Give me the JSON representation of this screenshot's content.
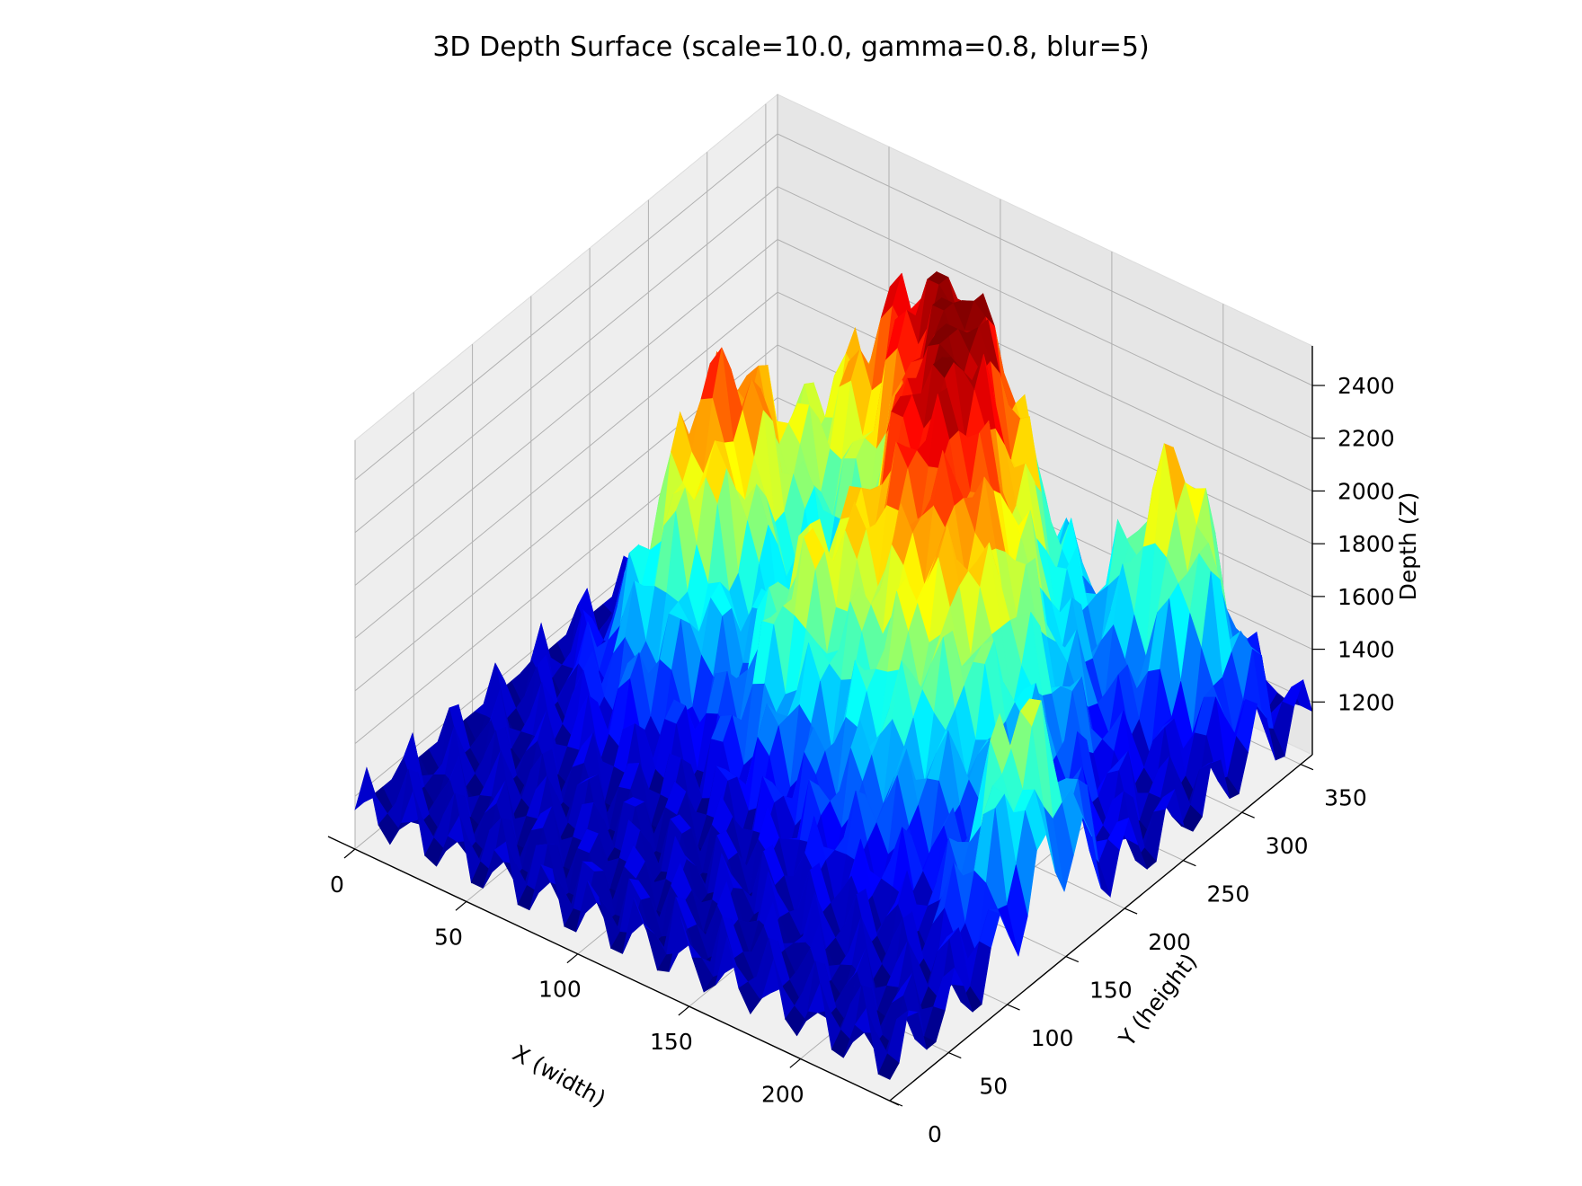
{
  "chart_data": {
    "type": "surface3d",
    "title": "3D Depth Surface (scale=10.0, gamma=0.8, blur=5)",
    "xlabel": "X (width)",
    "ylabel": "Y (height)",
    "zlabel": "Depth (Z)",
    "x_ticks": [
      0,
      50,
      100,
      150,
      200
    ],
    "y_ticks": [
      0,
      50,
      100,
      150,
      200,
      250,
      300,
      350
    ],
    "z_ticks": [
      1200,
      1400,
      1600,
      1800,
      2000,
      2200,
      2400
    ],
    "x_range": [
      0,
      240
    ],
    "y_range": [
      0,
      360
    ],
    "z_range": [
      1000,
      2550
    ],
    "colormap": "jet",
    "grid": true,
    "pane_color": "#f2f2f2",
    "grid_color": "#b0b0b0"
  }
}
